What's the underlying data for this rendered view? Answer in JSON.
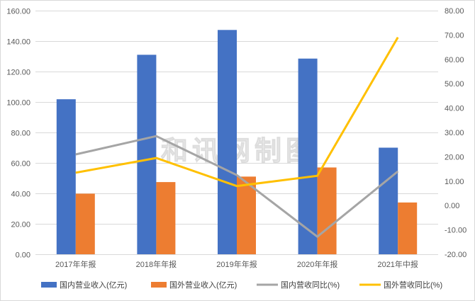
{
  "chart_data": {
    "type": "bar",
    "categories": [
      "2017年年报",
      "2018年年报",
      "2019年年报",
      "2020年年报",
      "2021年中报"
    ],
    "series": [
      {
        "name": "国内营业收入(亿元)",
        "type": "bar",
        "axis": "left",
        "color": "#4472C4",
        "values": [
          101.8,
          131.0,
          147.3,
          128.5,
          70.0
        ]
      },
      {
        "name": "国外营业收入(亿元)",
        "type": "bar",
        "axis": "left",
        "color": "#ED7D31",
        "values": [
          39.8,
          47.4,
          51.0,
          57.0,
          34.0
        ]
      },
      {
        "name": "国内营收同比(%)",
        "type": "line",
        "axis": "right",
        "color": "#A5A5A5",
        "values": [
          21.0,
          28.5,
          12.5,
          -12.8,
          14.0
        ]
      },
      {
        "name": "国外营收同比(%)",
        "type": "line",
        "axis": "right",
        "color": "#FFC000",
        "values": [
          13.5,
          19.5,
          8.0,
          12.2,
          69.0
        ]
      }
    ],
    "y_left": {
      "range": [
        0,
        160
      ],
      "ticks": [
        "0.00",
        "20.00",
        "40.00",
        "60.00",
        "80.00",
        "100.00",
        "120.00",
        "140.00",
        "160.00"
      ]
    },
    "y_right": {
      "range": [
        -20,
        80
      ],
      "ticks": [
        "-20.00",
        "-10.00",
        "0.00",
        "10.00",
        "20.00",
        "30.00",
        "40.00",
        "50.00",
        "60.00",
        "70.00",
        "80.00"
      ]
    },
    "grid": true,
    "legend": "bottom",
    "watermark": "和讯网制图"
  }
}
